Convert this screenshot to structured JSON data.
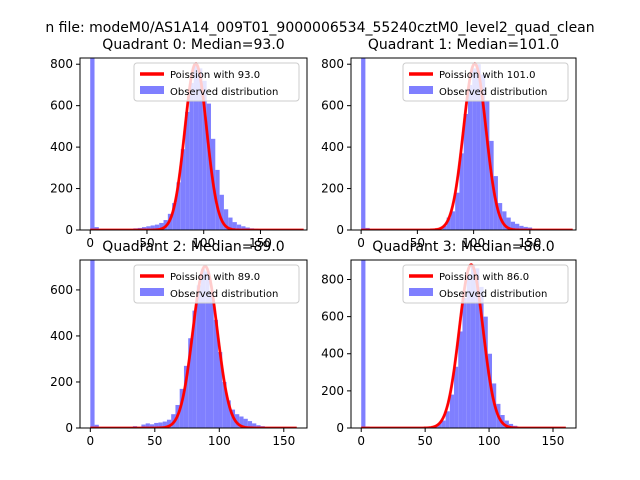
{
  "figure": {
    "title": "n file: modeM0/AS1A14_009T01_9000006534_55240cztM0_level2_quad_clean"
  },
  "colors": {
    "hist": "#7f7fff",
    "fit": "#ff0000",
    "legend_border": "#cccccc"
  },
  "chart_data": [
    {
      "type": "histogram",
      "title": "Quadrant 0: Median=93.0",
      "median": 93.0,
      "xlim": [
        -9,
        191
      ],
      "ylim": [
        0,
        830
      ],
      "xticks": [
        0,
        50,
        100,
        150
      ],
      "yticks": [
        0,
        200,
        400,
        600,
        800
      ],
      "legend": {
        "position": "top-right",
        "entries": [
          "Poission with 93.0",
          "Observed distribution"
        ]
      },
      "hist": {
        "bin_width": 3.8,
        "bins": [
          {
            "x": 0,
            "y": 830
          },
          {
            "x": 3.8,
            "y": 14
          },
          {
            "x": 38,
            "y": 8
          },
          {
            "x": 41.8,
            "y": 10
          },
          {
            "x": 45.6,
            "y": 14
          },
          {
            "x": 49.4,
            "y": 18
          },
          {
            "x": 53.2,
            "y": 22
          },
          {
            "x": 57,
            "y": 26
          },
          {
            "x": 60.8,
            "y": 34
          },
          {
            "x": 64.6,
            "y": 48
          },
          {
            "x": 68.4,
            "y": 78
          },
          {
            "x": 72.2,
            "y": 130
          },
          {
            "x": 76,
            "y": 230
          },
          {
            "x": 79.8,
            "y": 390
          },
          {
            "x": 83.6,
            "y": 570
          },
          {
            "x": 87.4,
            "y": 710
          },
          {
            "x": 91.2,
            "y": 800
          },
          {
            "x": 95,
            "y": 780
          },
          {
            "x": 98.8,
            "y": 720
          },
          {
            "x": 102.6,
            "y": 610
          },
          {
            "x": 106.4,
            "y": 440
          },
          {
            "x": 110.2,
            "y": 290
          },
          {
            "x": 114,
            "y": 170
          },
          {
            "x": 117.8,
            "y": 100
          },
          {
            "x": 121.6,
            "y": 60
          },
          {
            "x": 125.4,
            "y": 38
          },
          {
            "x": 129.2,
            "y": 26
          },
          {
            "x": 133,
            "y": 18
          },
          {
            "x": 136.8,
            "y": 12
          },
          {
            "x": 140.6,
            "y": 8
          },
          {
            "x": 144.4,
            "y": 6
          },
          {
            "x": 148.2,
            "y": 4
          }
        ]
      },
      "fit": {
        "label": "Poission with 93.0",
        "mean": 93.0,
        "peak": 803,
        "sigma": 9.6,
        "x_range": [
          0,
          188
        ]
      }
    },
    {
      "type": "histogram",
      "title": "Quadrant 1: Median=101.0",
      "median": 101.0,
      "xlim": [
        -9,
        191
      ],
      "ylim": [
        0,
        830
      ],
      "xticks": [
        0,
        50,
        100,
        150
      ],
      "yticks": [
        0,
        200,
        400,
        600,
        800
      ],
      "legend": {
        "position": "top-right",
        "entries": [
          "Poission with 101.0",
          "Observed distribution"
        ]
      },
      "hist": {
        "bin_width": 3.8,
        "bins": [
          {
            "x": 0,
            "y": 830
          },
          {
            "x": 3.8,
            "y": 10
          },
          {
            "x": 72.2,
            "y": 20
          },
          {
            "x": 76,
            "y": 60
          },
          {
            "x": 79.8,
            "y": 90
          },
          {
            "x": 83.6,
            "y": 180
          },
          {
            "x": 87.4,
            "y": 370
          },
          {
            "x": 91.2,
            "y": 560
          },
          {
            "x": 95,
            "y": 700
          },
          {
            "x": 98.8,
            "y": 780
          },
          {
            "x": 102.6,
            "y": 800
          },
          {
            "x": 106.4,
            "y": 750
          },
          {
            "x": 110.2,
            "y": 620
          },
          {
            "x": 114,
            "y": 430
          },
          {
            "x": 117.8,
            "y": 260
          },
          {
            "x": 121.6,
            "y": 130
          },
          {
            "x": 125.4,
            "y": 90
          },
          {
            "x": 129.2,
            "y": 60
          },
          {
            "x": 133,
            "y": 40
          },
          {
            "x": 136.8,
            "y": 30
          },
          {
            "x": 140.6,
            "y": 20
          },
          {
            "x": 144.4,
            "y": 15
          },
          {
            "x": 148.2,
            "y": 12
          }
        ]
      },
      "fit": {
        "label": "Poission with 101.0",
        "mean": 101.0,
        "peak": 803,
        "sigma": 10.0,
        "x_range": [
          0,
          188
        ]
      }
    },
    {
      "type": "histogram",
      "title": "Quadrant 2: Median=89.0",
      "median": 89.0,
      "xlim": [
        -8,
        168
      ],
      "ylim": [
        0,
        730
      ],
      "xticks": [
        0,
        50,
        100,
        150
      ],
      "yticks": [
        0,
        200,
        400,
        600
      ],
      "legend": {
        "position": "top-right",
        "entries": [
          "Poission with 89.0",
          "Observed distribution"
        ]
      },
      "hist": {
        "bin_width": 3.3,
        "bins": [
          {
            "x": 0,
            "y": 730
          },
          {
            "x": 3.3,
            "y": 14
          },
          {
            "x": 33,
            "y": 8
          },
          {
            "x": 39.6,
            "y": 15
          },
          {
            "x": 42.9,
            "y": 20
          },
          {
            "x": 46.2,
            "y": 16
          },
          {
            "x": 49.5,
            "y": 22
          },
          {
            "x": 52.8,
            "y": 24
          },
          {
            "x": 56.1,
            "y": 28
          },
          {
            "x": 59.4,
            "y": 36
          },
          {
            "x": 62.7,
            "y": 60
          },
          {
            "x": 66,
            "y": 100
          },
          {
            "x": 69.3,
            "y": 170
          },
          {
            "x": 72.6,
            "y": 270
          },
          {
            "x": 75.9,
            "y": 390
          },
          {
            "x": 79.2,
            "y": 510
          },
          {
            "x": 82.5,
            "y": 620
          },
          {
            "x": 85.8,
            "y": 690
          },
          {
            "x": 89.1,
            "y": 680
          },
          {
            "x": 92.4,
            "y": 590
          },
          {
            "x": 95.7,
            "y": 470
          },
          {
            "x": 99,
            "y": 330
          },
          {
            "x": 102.3,
            "y": 200
          },
          {
            "x": 105.6,
            "y": 120
          },
          {
            "x": 108.9,
            "y": 80
          },
          {
            "x": 112.2,
            "y": 60
          },
          {
            "x": 115.5,
            "y": 50
          },
          {
            "x": 118.8,
            "y": 40
          },
          {
            "x": 122.1,
            "y": 30
          },
          {
            "x": 125.4,
            "y": 20
          },
          {
            "x": 128.7,
            "y": 12
          },
          {
            "x": 132,
            "y": 8
          }
        ]
      },
      "fit": {
        "label": "Poission with 89.0",
        "mean": 89.0,
        "peak": 703,
        "sigma": 9.4,
        "x_range": [
          0,
          160
        ]
      }
    },
    {
      "type": "histogram",
      "title": "Quadrant 3: Median=86.0",
      "median": 86.0,
      "xlim": [
        -8,
        168
      ],
      "ylim": [
        0,
        905
      ],
      "xticks": [
        0,
        50,
        100,
        150
      ],
      "yticks": [
        0,
        200,
        400,
        600,
        800
      ],
      "legend": {
        "position": "top-right",
        "entries": [
          "Poission with 86.0",
          "Observed distribution"
        ]
      },
      "hist": {
        "bin_width": 3.3,
        "bins": [
          {
            "x": 0,
            "y": 905
          },
          {
            "x": 3.3,
            "y": 8
          },
          {
            "x": 56.1,
            "y": 10
          },
          {
            "x": 59.4,
            "y": 24
          },
          {
            "x": 62.7,
            "y": 40
          },
          {
            "x": 66,
            "y": 90
          },
          {
            "x": 69.3,
            "y": 180
          },
          {
            "x": 72.6,
            "y": 330
          },
          {
            "x": 75.9,
            "y": 520
          },
          {
            "x": 79.2,
            "y": 700
          },
          {
            "x": 82.5,
            "y": 820
          },
          {
            "x": 85.8,
            "y": 880
          },
          {
            "x": 89.1,
            "y": 860
          },
          {
            "x": 92.4,
            "y": 760
          },
          {
            "x": 95.7,
            "y": 600
          },
          {
            "x": 99,
            "y": 400
          },
          {
            "x": 102.3,
            "y": 240
          },
          {
            "x": 105.6,
            "y": 130
          },
          {
            "x": 108.9,
            "y": 70
          },
          {
            "x": 112.2,
            "y": 40
          },
          {
            "x": 115.5,
            "y": 22
          },
          {
            "x": 118.8,
            "y": 12
          }
        ]
      },
      "fit": {
        "label": "Poission with 86.0",
        "mean": 86.0,
        "peak": 880,
        "sigma": 9.3,
        "x_range": [
          0,
          160
        ]
      }
    }
  ]
}
